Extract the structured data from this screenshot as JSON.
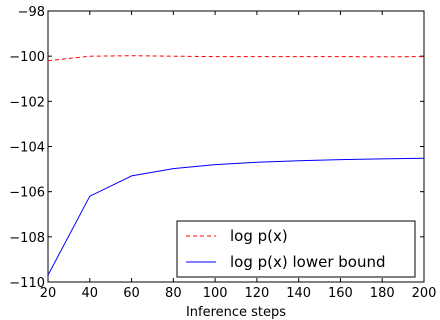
{
  "chart_data": {
    "type": "line",
    "title": "",
    "xlabel": "Inference steps",
    "ylabel": "",
    "xlim": [
      20,
      200
    ],
    "ylim": [
      -110,
      -98
    ],
    "xticks": [
      "20",
      "40",
      "60",
      "80",
      "100",
      "120",
      "140",
      "160",
      "180",
      "200"
    ],
    "yticks": [
      "−98",
      "−100",
      "−102",
      "−104",
      "−106",
      "−108",
      "−110"
    ],
    "grid": false,
    "legend_position": "lower-right",
    "series": [
      {
        "name": "log p(x)",
        "color": "#ff0000",
        "style": "dashed",
        "x": [
          20,
          40,
          60,
          80,
          100,
          120,
          140,
          160,
          180,
          200
        ],
        "y": [
          -100.2,
          -100.0,
          -99.98,
          -100.0,
          -100.02,
          -100.02,
          -100.02,
          -100.02,
          -100.03,
          -100.02
        ]
      },
      {
        "name": "log p(x) lower bound",
        "color": "#0000ff",
        "style": "solid",
        "x": [
          20,
          40,
          60,
          80,
          100,
          120,
          140,
          160,
          180,
          200
        ],
        "y": [
          -109.7,
          -106.2,
          -105.3,
          -104.98,
          -104.8,
          -104.7,
          -104.63,
          -104.58,
          -104.55,
          -104.52
        ]
      }
    ]
  }
}
